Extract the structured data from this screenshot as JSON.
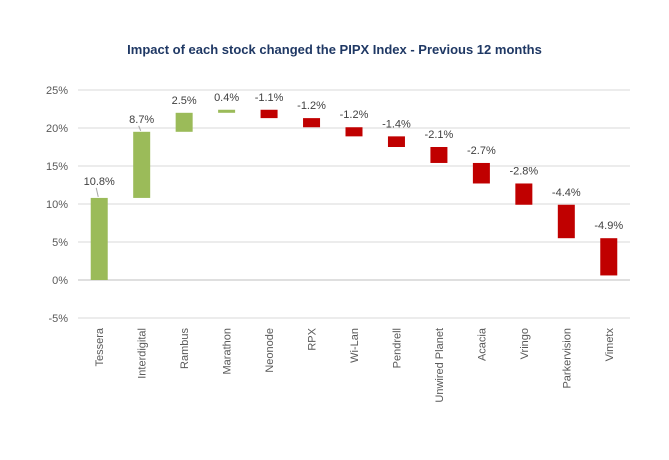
{
  "chart_data": {
    "type": "bar",
    "subtype": "waterfall",
    "title": "Impact of each stock changed the PIPX Index - Previous 12 months",
    "xlabel": "",
    "ylabel": "",
    "ylim": [
      -5,
      25
    ],
    "yticks": [
      -5,
      0,
      5,
      10,
      15,
      20,
      25
    ],
    "ytick_labels": [
      "-5%",
      "0%",
      "5%",
      "10%",
      "15%",
      "20%",
      "25%"
    ],
    "grid": true,
    "legend": "none",
    "colors": {
      "positive": "#9bbb59",
      "negative": "#c00000",
      "grid": "#d9d9d9",
      "axis": "#bfbfbf",
      "title": "#1f3864"
    },
    "categories": [
      "Tessera",
      "Interdigital",
      "Rambus",
      "Marathon",
      "Neonode",
      "RPX",
      "Wi-Lan",
      "Pendrell",
      "Unwired Planet",
      "Acacia",
      "Vringo",
      "Parkervision",
      "Vimetx"
    ],
    "values": [
      10.8,
      8.7,
      2.5,
      0.4,
      -1.1,
      -1.2,
      -1.2,
      -1.4,
      -2.1,
      -2.7,
      -2.8,
      -4.4,
      -4.9
    ],
    "data_labels": [
      "10.8%",
      "8.7%",
      "2.5%",
      "0.4%",
      "-1.1%",
      "-1.2%",
      "-1.2%",
      "-1.4%",
      "-2.1%",
      "-2.7%",
      "-2.8%",
      "-4.4%",
      "-4.9%"
    ]
  }
}
